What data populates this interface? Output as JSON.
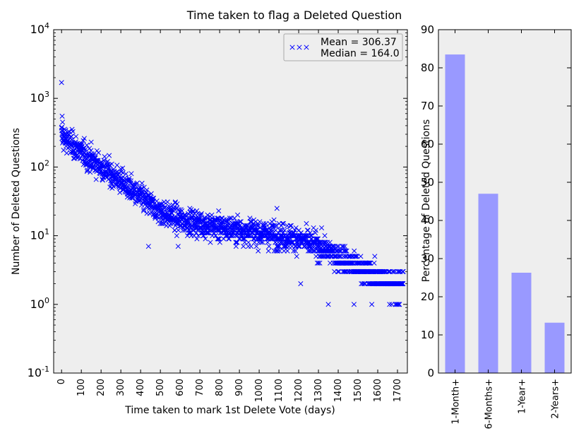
{
  "title": "Time taken to flag a Deleted Question",
  "chart_data": [
    {
      "type": "scatter",
      "marker": "x",
      "color": "#0000ff",
      "xlabel": "Time taken to mark 1st Delete Vote (days)",
      "ylabel": "Number of Deleted Questions",
      "yscale": "log",
      "xlim": [
        -40,
        1750
      ],
      "ylim": [
        0.1,
        10000
      ],
      "xticks": [
        0,
        100,
        200,
        300,
        400,
        500,
        600,
        700,
        800,
        900,
        1000,
        1100,
        1200,
        1300,
        1400,
        1500,
        1600,
        1700
      ],
      "xtick_labels": [
        "0",
        "100",
        "200",
        "300",
        "400",
        "500",
        "600",
        "700",
        "800",
        "900",
        "1000",
        "1100",
        "1200",
        "1300",
        "1400",
        "1500",
        "1600",
        "1700"
      ],
      "yticks": [
        0.1,
        1,
        10,
        100,
        1000,
        10000
      ],
      "ytick_labels": [
        {
          "base": "10",
          "exp": "-1"
        },
        {
          "base": "10",
          "exp": "0"
        },
        {
          "base": "10",
          "exp": "1"
        },
        {
          "base": "10",
          "exp": "2"
        },
        {
          "base": "10",
          "exp": "3"
        },
        {
          "base": "10",
          "exp": "4"
        }
      ],
      "legend": {
        "position": "top-right",
        "lines": [
          "Mean = 306.37",
          "Median = 164.0"
        ]
      },
      "trend_points": [
        [
          0,
          280
        ],
        [
          100,
          165
        ],
        [
          200,
          100
        ],
        [
          300,
          62
        ],
        [
          400,
          36
        ],
        [
          500,
          22
        ],
        [
          600,
          17
        ],
        [
          700,
          15
        ],
        [
          800,
          13
        ],
        [
          900,
          12
        ],
        [
          1000,
          11
        ],
        [
          1100,
          10
        ],
        [
          1200,
          9
        ],
        [
          1300,
          7
        ],
        [
          1400,
          5
        ],
        [
          1500,
          3.5
        ],
        [
          1600,
          2.5
        ],
        [
          1700,
          2
        ]
      ],
      "outliers": [
        [
          0,
          1700
        ],
        [
          3,
          550
        ],
        [
          5,
          450
        ],
        [
          1,
          380
        ],
        [
          1350,
          1
        ],
        [
          1210,
          2
        ],
        [
          590,
          7
        ],
        [
          1090,
          25
        ],
        [
          470,
          25
        ],
        [
          440,
          7
        ],
        [
          1570,
          1
        ],
        [
          1480,
          1
        ]
      ],
      "n_points": 1730,
      "grid": false
    },
    {
      "type": "bar",
      "color": "#9999ff",
      "categories": [
        "1-Month+",
        "6-Months+",
        "1-Year+",
        "2-Years+"
      ],
      "values": [
        83.5,
        47.0,
        26.3,
        13.2
      ],
      "ylabel": "Percentage of Deleted Questions",
      "ylim": [
        0,
        90
      ],
      "yticks": [
        0,
        10,
        20,
        30,
        40,
        50,
        60,
        70,
        80,
        90
      ],
      "ytick_labels": [
        "0",
        "10",
        "20",
        "30",
        "40",
        "50",
        "60",
        "70",
        "80",
        "90"
      ],
      "grid": false
    }
  ]
}
